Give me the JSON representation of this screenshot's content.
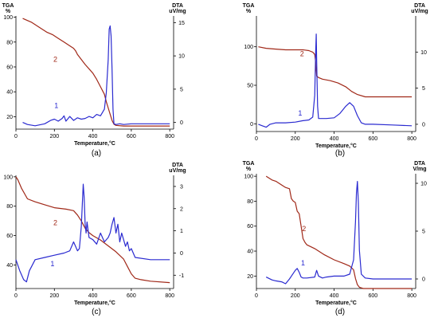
{
  "colors": {
    "tga": "#a02818",
    "dta": "#2a2ad0",
    "tga_label": "#a02818",
    "dta_label": "#2a2ad0"
  },
  "chart_data": [
    {
      "type": "line",
      "panel_label": "(a)",
      "xlabel": "Temperature,°C",
      "ylabel_left": "TGA\n%",
      "ylabel_right": "DTA\nuV/mg",
      "x_ticks": [
        0,
        200,
        400,
        600,
        800
      ],
      "y_left_ticks": [
        20,
        40,
        60,
        80,
        100
      ],
      "y_right_ticks": [
        0,
        5,
        10,
        15
      ],
      "xlim": [
        0,
        820
      ],
      "ylim_left": [
        10,
        101
      ],
      "ylim_right": [
        -1,
        16
      ],
      "series": [
        {
          "name": "2",
          "axis": "left",
          "color_key": "tga",
          "x": [
            35,
            50,
            80,
            100,
            130,
            160,
            190,
            220,
            250,
            280,
            300,
            310,
            320,
            330,
            360,
            400,
            420,
            440,
            460,
            470,
            480,
            490,
            500,
            510,
            520,
            560,
            600,
            800
          ],
          "y": [
            99,
            98,
            96,
            94,
            91,
            88,
            86,
            83,
            80,
            77,
            75,
            73,
            70,
            68,
            62,
            55,
            50,
            44,
            38,
            32,
            27,
            22,
            17,
            14,
            13,
            12.5,
            12.5,
            12.5
          ]
        },
        {
          "name": "1",
          "axis": "right",
          "color_key": "dta",
          "x": [
            35,
            60,
            100,
            150,
            180,
            200,
            220,
            240,
            250,
            260,
            280,
            300,
            320,
            340,
            360,
            380,
            400,
            420,
            440,
            460,
            470,
            480,
            485,
            490,
            495,
            500,
            505,
            510,
            520,
            540,
            560,
            600,
            800
          ],
          "y": [
            0,
            -0.3,
            -0.5,
            -0.2,
            0.3,
            0.5,
            0.2,
            0.6,
            1.0,
            0.2,
            0.9,
            0.3,
            0.7,
            0.5,
            0.6,
            0.9,
            0.7,
            1.2,
            1.0,
            2.0,
            4.5,
            9.5,
            14.0,
            14.5,
            13.0,
            8.0,
            2.0,
            -0.2,
            -0.3,
            -0.2,
            -0.3,
            -0.2,
            -0.2
          ]
        }
      ],
      "curve_labels": [
        {
          "text": "2",
          "x": 205,
          "y": 64,
          "axis": "left",
          "color_key": "tga_label"
        },
        {
          "text": "1",
          "x": 210,
          "y": 2.2,
          "axis": "right",
          "color_key": "dta_label"
        }
      ]
    },
    {
      "type": "line",
      "panel_label": "(b)",
      "xlabel": "Temperature,°C",
      "ylabel_left": "TGA\n%",
      "ylabel_right": "DTA\nuV/mg",
      "x_ticks": [
        0,
        200,
        400,
        600,
        800
      ],
      "y_left_ticks": [
        0,
        50,
        100
      ],
      "y_right_ticks": [
        0,
        5,
        10
      ],
      "xlim": [
        0,
        820
      ],
      "ylim_left": [
        -10,
        140
      ],
      "ylim_right": [
        -1,
        15
      ],
      "series": [
        {
          "name": "2",
          "axis": "left",
          "color_key": "tga",
          "x": [
            10,
            50,
            100,
            150,
            200,
            240,
            270,
            290,
            300,
            305,
            310,
            320,
            340,
            380,
            420,
            460,
            490,
            520,
            560,
            600,
            700,
            800
          ],
          "y": [
            100,
            98,
            97,
            96,
            96,
            96,
            95,
            93,
            90,
            80,
            62,
            60,
            58,
            56,
            53,
            48,
            42,
            38,
            35,
            35,
            35,
            35
          ]
        },
        {
          "name": "1",
          "axis": "right",
          "color_key": "dta",
          "x": [
            10,
            30,
            50,
            70,
            100,
            150,
            200,
            240,
            270,
            290,
            300,
            305,
            308,
            310,
            315,
            320,
            330,
            360,
            400,
            430,
            460,
            480,
            500,
            520,
            540,
            560,
            600,
            700,
            800
          ],
          "y": [
            0,
            -0.2,
            -0.4,
            0,
            0.2,
            0.2,
            0.3,
            0.5,
            0.6,
            1.0,
            4.0,
            10,
            12.5,
            9,
            2.5,
            0.8,
            0.8,
            0.8,
            0.9,
            1.5,
            2.5,
            3.0,
            2.5,
            1.2,
            0.2,
            0,
            0,
            -0.1,
            -0.2
          ]
        }
      ],
      "curve_labels": [
        {
          "text": "2",
          "x": 235,
          "y": 88,
          "axis": "left",
          "color_key": "tga_label"
        },
        {
          "text": "1",
          "x": 225,
          "y": 1.2,
          "axis": "right",
          "color_key": "dta_label"
        }
      ]
    },
    {
      "type": "line",
      "panel_label": "(c)",
      "xlabel": "Temperature,°C",
      "ylabel_left": "",
      "ylabel_right": "DTA\nuV/mg",
      "x_ticks": [
        0,
        200,
        400,
        600,
        800
      ],
      "y_left_ticks": [
        40,
        60,
        80,
        100
      ],
      "y_right_ticks": [
        -1,
        0,
        1,
        2,
        3
      ],
      "xlim": [
        0,
        820
      ],
      "ylim_left": [
        24,
        101
      ],
      "ylim_right": [
        -1.6,
        3.5
      ],
      "series": [
        {
          "name": "2",
          "axis": "left",
          "color_key": "tga",
          "x": [
            0,
            10,
            30,
            60,
            100,
            150,
            200,
            260,
            300,
            320,
            340,
            360,
            380,
            400,
            440,
            480,
            520,
            560,
            580,
            600,
            620,
            650,
            700,
            800
          ],
          "y": [
            100,
            98,
            92,
            85,
            83,
            81,
            79,
            78,
            77,
            74,
            70,
            65,
            62,
            60,
            57,
            53,
            49,
            44,
            39,
            34,
            31,
            30,
            29,
            28
          ]
        },
        {
          "name": "1",
          "axis": "right",
          "color_key": "dta",
          "x": [
            0,
            20,
            40,
            55,
            70,
            100,
            150,
            200,
            250,
            280,
            300,
            310,
            320,
            330,
            340,
            350,
            355,
            360,
            365,
            370,
            380,
            400,
            420,
            440,
            460,
            480,
            490,
            500,
            510,
            520,
            530,
            540,
            550,
            560,
            570,
            580,
            590,
            600,
            620,
            700,
            800
          ],
          "y": [
            -0.3,
            -0.8,
            -1.2,
            -1.3,
            -0.8,
            -0.3,
            -0.2,
            -0.1,
            0,
            0.1,
            0.5,
            0.3,
            0.1,
            0.2,
            1.2,
            3.1,
            2.5,
            1.3,
            0.9,
            1.4,
            0.7,
            0.6,
            0.4,
            0.9,
            0.5,
            0.7,
            0.9,
            1.3,
            1.6,
            0.9,
            1.3,
            0.5,
            0.9,
            0.6,
            0.3,
            0.5,
            0.1,
            0.2,
            -0.2,
            -0.3,
            -0.3
          ]
        }
      ],
      "curve_labels": [
        {
          "text": "2",
          "x": 205,
          "y": 67,
          "axis": "left",
          "color_key": "tga_label"
        },
        {
          "text": "1",
          "x": 190,
          "y": -0.6,
          "axis": "right",
          "color_key": "dta_label"
        }
      ]
    },
    {
      "type": "line",
      "panel_label": "(d)",
      "xlabel": "Temperature,°C",
      "ylabel_left": "TGA\n%",
      "ylabel_right": "DTA\nV/mg",
      "x_ticks": [
        0,
        200,
        400,
        600,
        800
      ],
      "y_left_ticks": [
        20,
        40,
        60,
        80,
        100
      ],
      "y_right_ticks": [
        0,
        5,
        10
      ],
      "xlim": [
        0,
        820
      ],
      "ylim_left": [
        10,
        102
      ],
      "ylim_right": [
        -1,
        11
      ],
      "series": [
        {
          "name": "2",
          "axis": "left",
          "color_key": "tga",
          "x": [
            50,
            80,
            100,
            130,
            150,
            170,
            180,
            190,
            200,
            210,
            220,
            230,
            240,
            250,
            260,
            300,
            350,
            400,
            450,
            480,
            500,
            510,
            520,
            530,
            550,
            600,
            800
          ],
          "y": [
            100,
            97,
            96,
            93,
            91,
            90,
            82,
            80,
            79,
            72,
            70,
            60,
            50,
            47,
            45,
            42,
            37,
            33,
            30,
            28,
            25,
            18,
            13,
            11,
            10,
            10,
            10
          ]
        },
        {
          "name": "1",
          "axis": "right",
          "color_key": "dta",
          "x": [
            50,
            80,
            100,
            130,
            150,
            170,
            180,
            200,
            210,
            220,
            230,
            240,
            260,
            300,
            310,
            320,
            340,
            360,
            400,
            450,
            480,
            500,
            510,
            515,
            520,
            525,
            530,
            540,
            560,
            600,
            800
          ],
          "y": [
            0.2,
            -0.1,
            -0.2,
            -0.3,
            -0.5,
            0.0,
            0.3,
            0.9,
            1.1,
            0.7,
            0.2,
            0.1,
            0.1,
            0.2,
            0.9,
            0.3,
            0.1,
            0.2,
            0.3,
            0.3,
            0.5,
            2.0,
            6.0,
            9.0,
            10.2,
            8.0,
            3.0,
            0.5,
            0.1,
            0.0,
            0.0
          ]
        }
      ],
      "curve_labels": [
        {
          "text": "2",
          "x": 245,
          "y": 56,
          "axis": "left",
          "color_key": "tga_label"
        },
        {
          "text": "1",
          "x": 240,
          "y": 1.4,
          "axis": "right",
          "color_key": "dta_label"
        }
      ]
    }
  ]
}
